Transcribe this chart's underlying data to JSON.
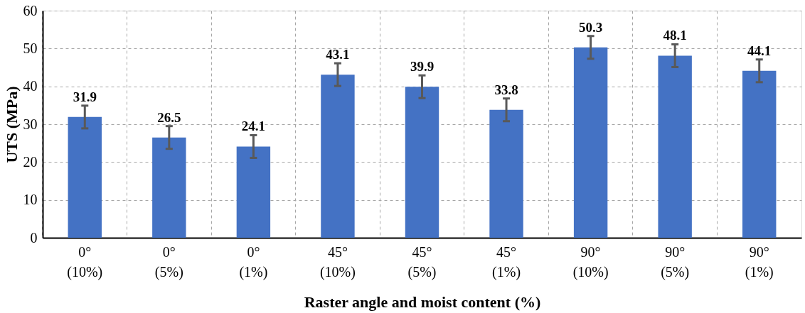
{
  "chart_data": {
    "type": "bar",
    "xlabel": "Raster angle and moist content (%)",
    "ylabel": "UTS (MPa)",
    "categories": [
      "0°\n(10%)",
      "0°\n(5%)",
      "0°\n(1%)",
      "45°\n(10%)",
      "45°\n(5%)",
      "45°\n(1%)",
      "90°\n(10%)",
      "90°\n(5%)",
      "90°\n(1%)"
    ],
    "values": [
      31.9,
      26.5,
      24.1,
      43.1,
      39.9,
      33.8,
      50.3,
      48.1,
      44.1
    ],
    "errors": [
      3,
      3,
      3,
      3,
      3,
      3,
      3,
      3,
      3
    ],
    "color": "#4472c4",
    "ylim": [
      0,
      60
    ],
    "yticks": [
      0,
      10,
      20,
      30,
      40,
      50,
      60
    ],
    "grid": true,
    "data_labels": true
  }
}
